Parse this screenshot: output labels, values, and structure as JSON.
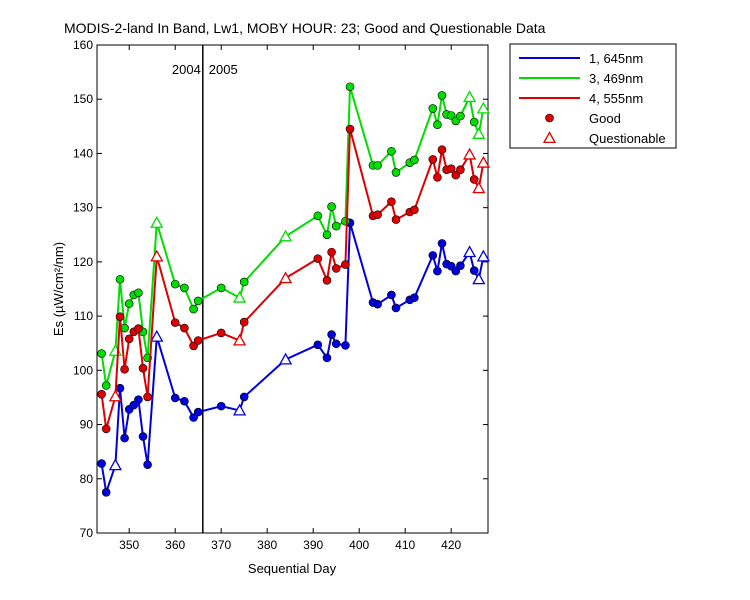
{
  "chart_data": {
    "type": "line",
    "title": "MODIS-2-land In Band,  Lw1, MOBY HOUR: 23;  Good and Questionable Data",
    "xlabel": "Sequential Day",
    "ylabel": "Es (µW/cm²/nm)",
    "xlim": [
      343,
      428
    ],
    "ylim": [
      70,
      160
    ],
    "xticks": [
      350,
      360,
      370,
      380,
      390,
      400,
      410,
      420
    ],
    "yticks": [
      70,
      80,
      90,
      100,
      110,
      120,
      130,
      140,
      150,
      160
    ],
    "grid": false,
    "legend_position": "outside-top-right",
    "year_divider": {
      "x": 366,
      "left_label": "2004",
      "right_label": "2005"
    },
    "x": [
      344,
      345,
      347,
      348,
      349,
      350,
      351,
      352,
      353,
      354,
      356,
      360,
      362,
      364,
      365,
      370,
      374,
      375,
      384,
      391,
      393,
      394,
      395,
      397,
      398,
      403,
      404,
      407,
      408,
      411,
      412,
      416,
      417,
      418,
      419,
      420,
      421,
      422,
      424,
      425,
      426,
      427
    ],
    "quality": [
      "G",
      "G",
      "Q",
      "G",
      "G",
      "G",
      "G",
      "G",
      "G",
      "G",
      "Q",
      "G",
      "G",
      "G",
      "G",
      "G",
      "Q",
      "G",
      "Q",
      "G",
      "G",
      "G",
      "G",
      "G",
      "G",
      "G",
      "G",
      "G",
      "G",
      "G",
      "G",
      "G",
      "G",
      "G",
      "G",
      "G",
      "G",
      "G",
      "Q",
      "G",
      "Q",
      "Q"
    ],
    "series": [
      {
        "name": "1, 645nm",
        "color": "#0000dd",
        "values": [
          82.8,
          77.5,
          82.5,
          96.7,
          87.5,
          92.8,
          93.6,
          94.6,
          87.8,
          82.6,
          106.2,
          94.9,
          94.3,
          91.3,
          92.3,
          93.4,
          92.6,
          95.1,
          102.0,
          104.7,
          102.3,
          106.6,
          104.9,
          104.6,
          127.2,
          112.5,
          112.2,
          113.9,
          111.5,
          113.0,
          113.4,
          121.2,
          118.3,
          123.4,
          119.6,
          119.2,
          118.3,
          119.3,
          121.8,
          118.4,
          116.8,
          121.0
        ]
      },
      {
        "name": "3, 469nm",
        "color": "#00dd00",
        "values": [
          103.1,
          97.2,
          103.6,
          116.8,
          107.8,
          112.3,
          113.9,
          114.3,
          107.1,
          102.3,
          127.2,
          115.9,
          115.2,
          111.3,
          112.8,
          115.2,
          113.4,
          116.3,
          124.7,
          128.5,
          125.0,
          130.2,
          126.6,
          127.5,
          152.3,
          137.8,
          137.8,
          140.4,
          136.5,
          138.3,
          138.8,
          148.3,
          145.3,
          150.7,
          147.2,
          147.0,
          146.0,
          146.9,
          150.4,
          145.8,
          143.6,
          148.3
        ]
      },
      {
        "name": "4, 555nm",
        "color": "#dd0000",
        "values": [
          95.6,
          89.2,
          95.2,
          109.9,
          100.2,
          105.8,
          107.1,
          107.7,
          100.4,
          95.1,
          121.0,
          108.8,
          107.8,
          104.5,
          105.5,
          106.9,
          105.5,
          108.9,
          117.0,
          120.6,
          116.6,
          121.8,
          118.8,
          119.5,
          144.5,
          128.5,
          128.7,
          131.1,
          127.8,
          129.2,
          129.6,
          138.9,
          135.6,
          140.7,
          137.0,
          137.2,
          136.0,
          137.0,
          139.8,
          135.2,
          133.6,
          138.3
        ]
      }
    ],
    "legend": {
      "entries": [
        "1, 645nm",
        "3, 469nm",
        "4, 555nm"
      ],
      "marker_entries": [
        "Good",
        "Questionable"
      ]
    }
  }
}
